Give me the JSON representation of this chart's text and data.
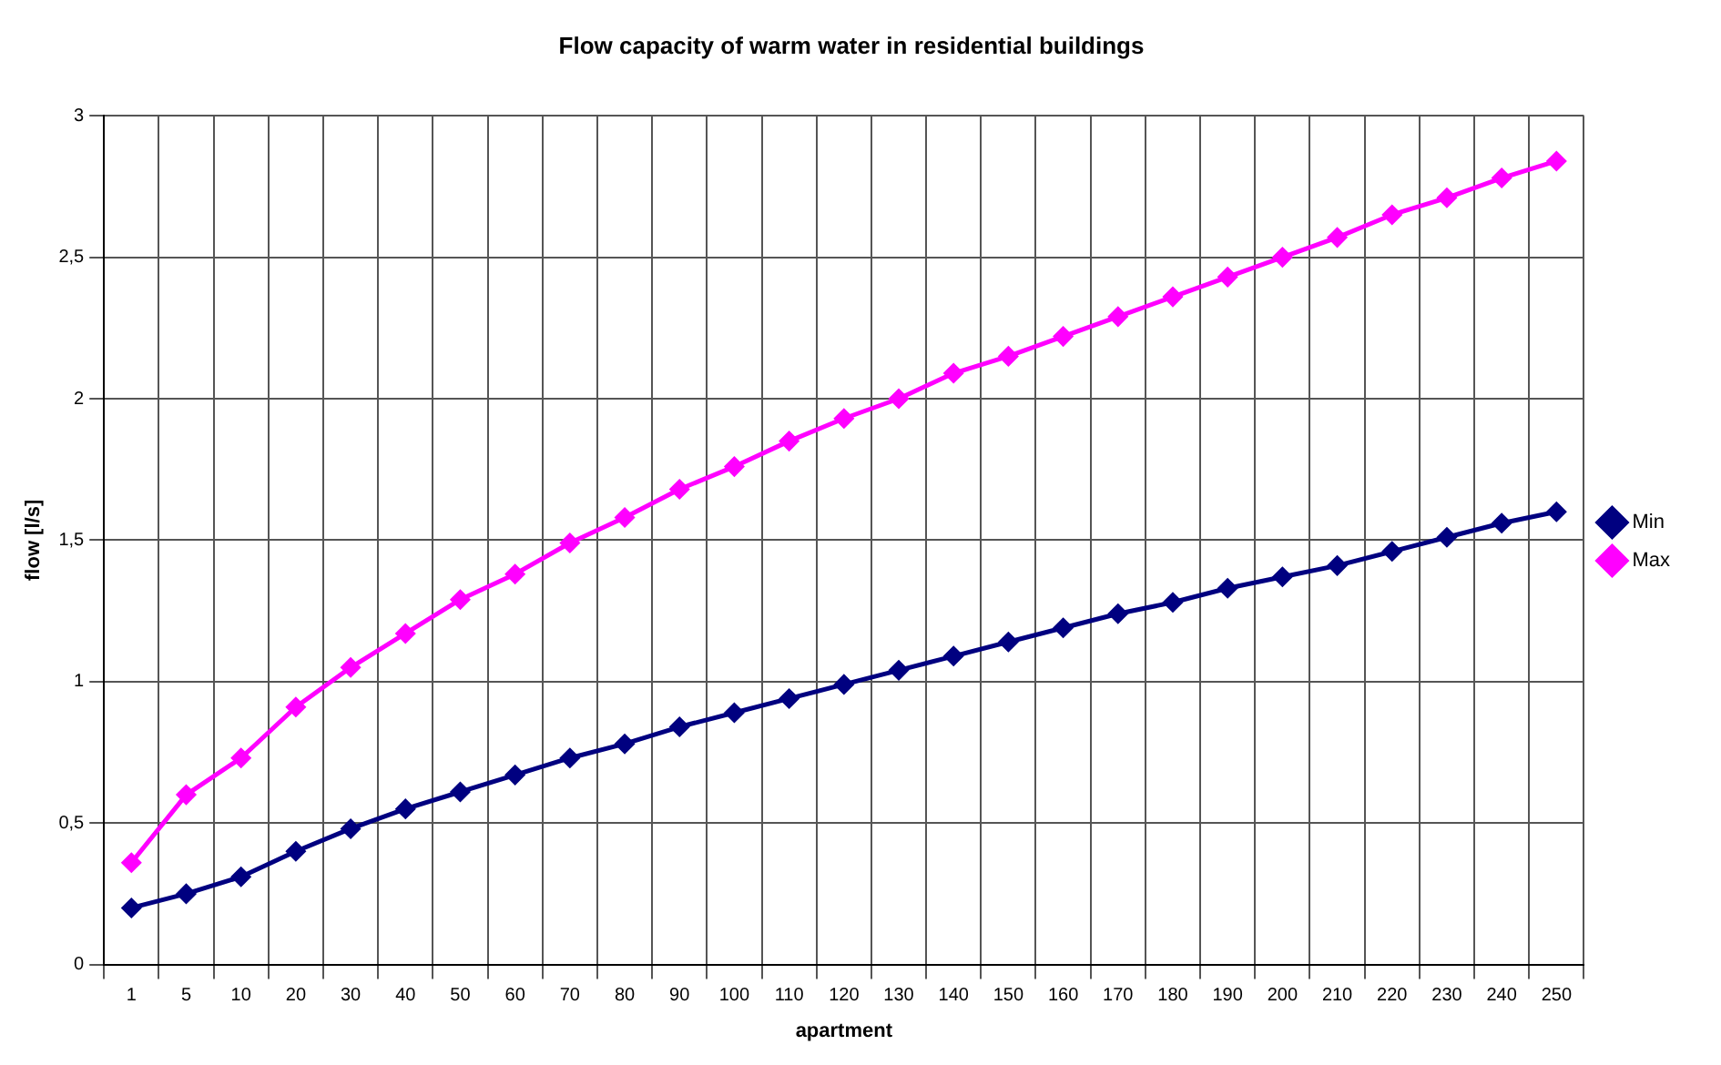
{
  "chart_data": {
    "type": "line",
    "title": "Flow capacity of warm water in residential buildings",
    "xlabel": "apartment",
    "ylabel": "flow [l/s]",
    "categories": [
      "1",
      "5",
      "10",
      "20",
      "30",
      "40",
      "50",
      "60",
      "70",
      "80",
      "90",
      "100",
      "110",
      "120",
      "130",
      "140",
      "150",
      "160",
      "170",
      "180",
      "190",
      "200",
      "210",
      "220",
      "230",
      "240",
      "250"
    ],
    "series": [
      {
        "name": "Min",
        "color": "#000080",
        "values": [
          0.2,
          0.25,
          0.31,
          0.4,
          0.48,
          0.55,
          0.61,
          0.67,
          0.73,
          0.78,
          0.84,
          0.89,
          0.94,
          0.99,
          1.04,
          1.09,
          1.14,
          1.19,
          1.24,
          1.28,
          1.33,
          1.37,
          1.41,
          1.46,
          1.51,
          1.56,
          1.6
        ]
      },
      {
        "name": "Max",
        "color": "#ff00ff",
        "values": [
          0.36,
          0.6,
          0.73,
          0.91,
          1.05,
          1.17,
          1.29,
          1.38,
          1.49,
          1.58,
          1.68,
          1.76,
          1.85,
          1.93,
          2.0,
          2.09,
          2.15,
          2.22,
          2.29,
          2.36,
          2.43,
          2.5,
          2.57,
          2.65,
          2.71,
          2.78,
          2.84
        ]
      }
    ],
    "ylim": [
      0,
      3
    ],
    "yticks": [
      0,
      {
        "value": 0.5,
        "label": "0,5"
      },
      1,
      {
        "value": 1.5,
        "label": "1,5"
      },
      2,
      {
        "value": 2.5,
        "label": "2,5"
      },
      3
    ],
    "grid": true,
    "legend": "right",
    "marker": "diamond",
    "line_style": "solid"
  }
}
